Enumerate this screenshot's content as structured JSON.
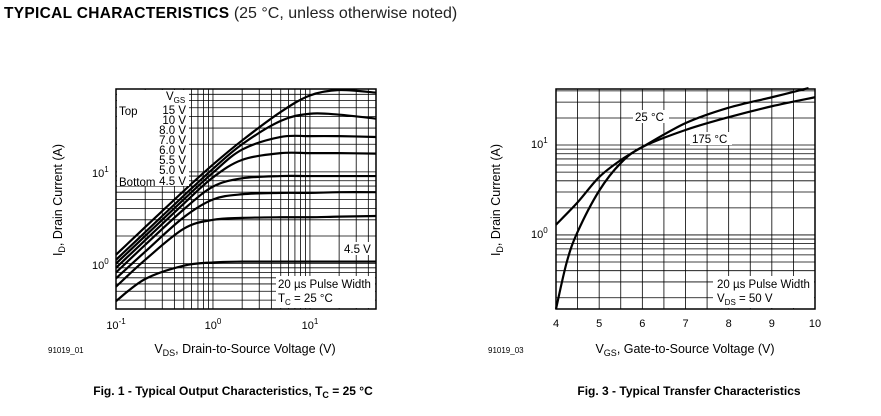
{
  "header": {
    "title": "TYPICAL CHARACTERISTICS",
    "subtitle": "(25 °C, unless otherwise noted)"
  },
  "colors": {
    "line": "#000000",
    "grid": "#000000",
    "background": "#ffffff"
  },
  "chart_data": [
    {
      "type": "line",
      "id": "fig1",
      "title": "Fig. 1 - Typical Output Characteristics, T",
      "title_sub": "C",
      "title_tail": " = 25 °C",
      "code": "91019_01",
      "xscale": "log",
      "yscale": "log",
      "xlim": [
        0.1,
        48
      ],
      "ylim": [
        0.32,
        80
      ],
      "xlabel": {
        "main": "V",
        "sub": "DS",
        "tail": ", Drain-to-Source Voltage (V)"
      },
      "ylabel": {
        "main": "I",
        "sub": "D",
        "tail": ", Drain Current (A)"
      },
      "xticks": [
        {
          "base": "10",
          "exp": "-1"
        },
        {
          "base": "10",
          "exp": "0"
        },
        {
          "base": "10",
          "exp": "1"
        }
      ],
      "yticks": [
        {
          "base": "10",
          "exp": "0"
        },
        {
          "base": "10",
          "exp": "1"
        }
      ],
      "grid": true,
      "legend": {
        "title_main": "V",
        "title_sub": "GS",
        "top_label": "Top",
        "bottom_label": "Bottom",
        "entries": [
          "15 V",
          "10 V",
          "8.0 V",
          "7.0 V",
          "6.0 V",
          "5.5 V",
          "5.0 V",
          "4.5 V"
        ],
        "placement": "top-left"
      },
      "annotations": {
        "curve_label": "4.5 V",
        "pulse": "20 µs Pulse Width",
        "cond_main": "T",
        "cond_sub": "C",
        "cond_tail": " = 25 °C"
      },
      "x": [
        0.1,
        0.2,
        0.5,
        1,
        2,
        5,
        10,
        20,
        48
      ],
      "series": [
        {
          "name": "15 V",
          "values": [
            1.25,
            2.5,
            6.2,
            12,
            22,
            45,
            68,
            78,
            73
          ]
        },
        {
          "name": "10 V",
          "values": [
            1.1,
            2.2,
            5.5,
            10.8,
            20,
            36,
            43,
            42,
            38
          ]
        },
        {
          "name": "8.0 V",
          "values": [
            1.0,
            2.0,
            5.0,
            9.8,
            17.5,
            24,
            24.5,
            24.5,
            24
          ]
        },
        {
          "name": "7.0 V",
          "values": [
            0.9,
            1.8,
            4.5,
            8.7,
            13.5,
            16,
            16,
            16,
            15.8
          ]
        },
        {
          "name": "6.0 V",
          "values": [
            0.8,
            1.6,
            3.9,
            6.9,
            8.5,
            9.0,
            9.0,
            9.0,
            9.0
          ]
        },
        {
          "name": "5.5 V",
          "values": [
            0.69,
            1.35,
            3.2,
            5.0,
            5.7,
            5.9,
            5.9,
            6.0,
            6.0
          ]
        },
        {
          "name": "5.0 V",
          "values": [
            0.56,
            1.1,
            2.4,
            3.0,
            3.15,
            3.2,
            3.2,
            3.25,
            3.3
          ]
        },
        {
          "name": "4.5 V",
          "values": [
            0.39,
            0.68,
            0.95,
            1.03,
            1.05,
            1.05,
            1.05,
            1.05,
            1.05
          ]
        }
      ]
    },
    {
      "type": "line",
      "id": "fig3",
      "title": "Fig. 3 - Typical Transfer Characteristics",
      "code": "91019_03",
      "xscale": "linear",
      "yscale": "log",
      "xlim": [
        4,
        10
      ],
      "ylim": [
        0.15,
        42
      ],
      "xlabel": {
        "main": "V",
        "sub": "GS",
        "tail": ", Gate-to-Source Voltage (V)"
      },
      "ylabel": {
        "main": "I",
        "sub": "D",
        "tail": ", Drain Current (A)"
      },
      "xticks": [
        "4",
        "5",
        "6",
        "7",
        "8",
        "9",
        "10"
      ],
      "yticks": [
        {
          "base": "10",
          "exp": "0"
        },
        {
          "base": "10",
          "exp": "1"
        }
      ],
      "grid": true,
      "annotations": {
        "pulse": "20 µs Pulse Width",
        "cond_main": "V",
        "cond_sub": "DS",
        "cond_tail": " = 50 V"
      },
      "series": [
        {
          "name": "25 °C",
          "x": [
            4,
            4.5,
            5,
            5.5,
            6,
            7,
            8,
            9,
            9.85
          ],
          "values": [
            1.3,
            2.3,
            4.4,
            6.8,
            9.5,
            17.5,
            26,
            34,
            43
          ]
        },
        {
          "name": "175 °C",
          "x": [
            4,
            4.25,
            4.5,
            5,
            5.5,
            6,
            7,
            8,
            9,
            10
          ],
          "values": [
            0.15,
            0.5,
            1.08,
            3.1,
            6.3,
            9.5,
            14.7,
            20.4,
            27,
            34
          ]
        }
      ]
    }
  ]
}
